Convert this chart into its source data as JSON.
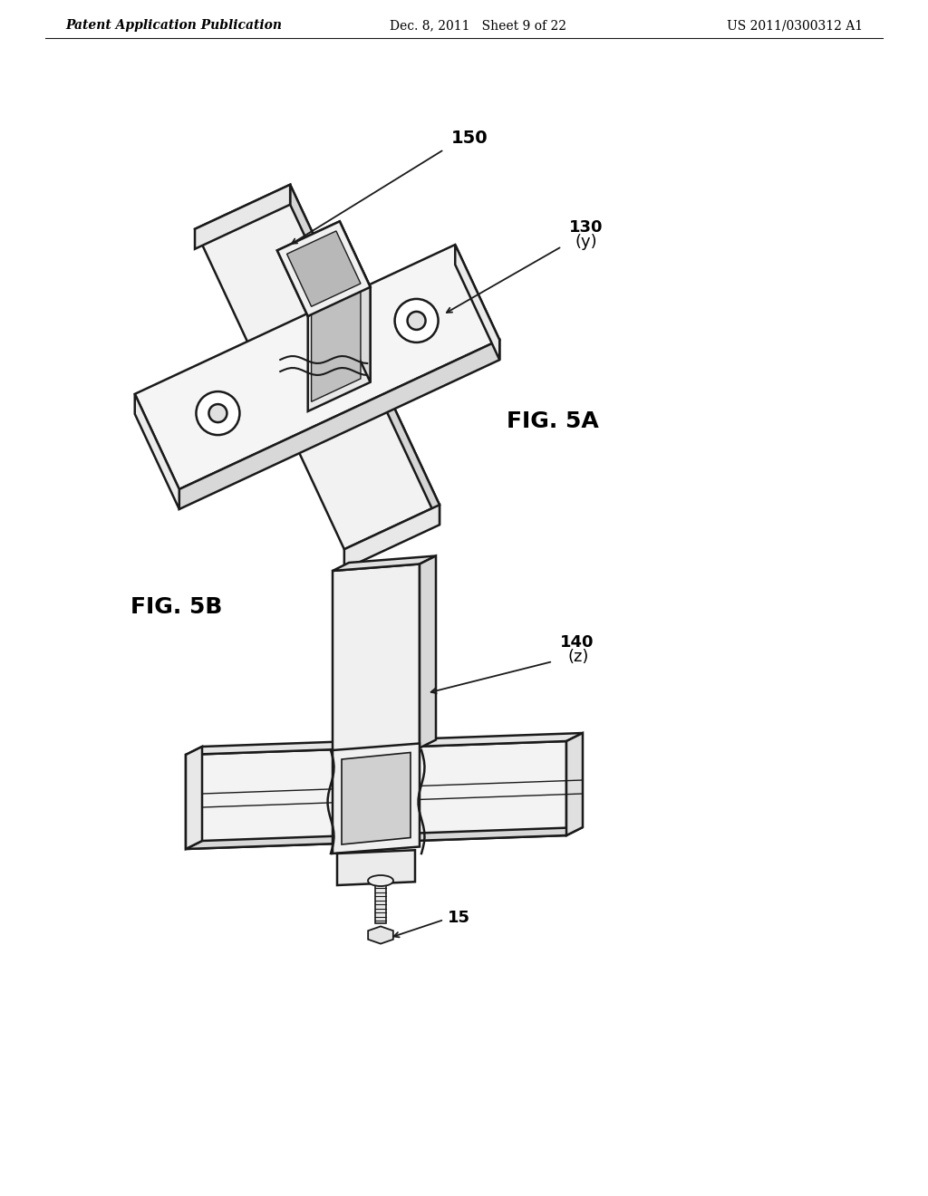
{
  "background_color": "#ffffff",
  "header_left": "Patent Application Publication",
  "header_center": "Dec. 8, 2011   Sheet 9 of 22",
  "header_right": "US 2011/0300312 A1",
  "fig5a_label": "FIG. 5A",
  "fig5b_label": "FIG. 5B",
  "label_150": "150",
  "label_130": "130",
  "label_130y": "(y)",
  "label_140": "140",
  "label_140z": "(z)",
  "label_15": "15",
  "line_color": "#1a1a1a",
  "text_color": "#000000",
  "header_fontsize": 11,
  "fig_label_fontsize": 18,
  "annotation_fontsize": 12,
  "lw_main": 1.8
}
